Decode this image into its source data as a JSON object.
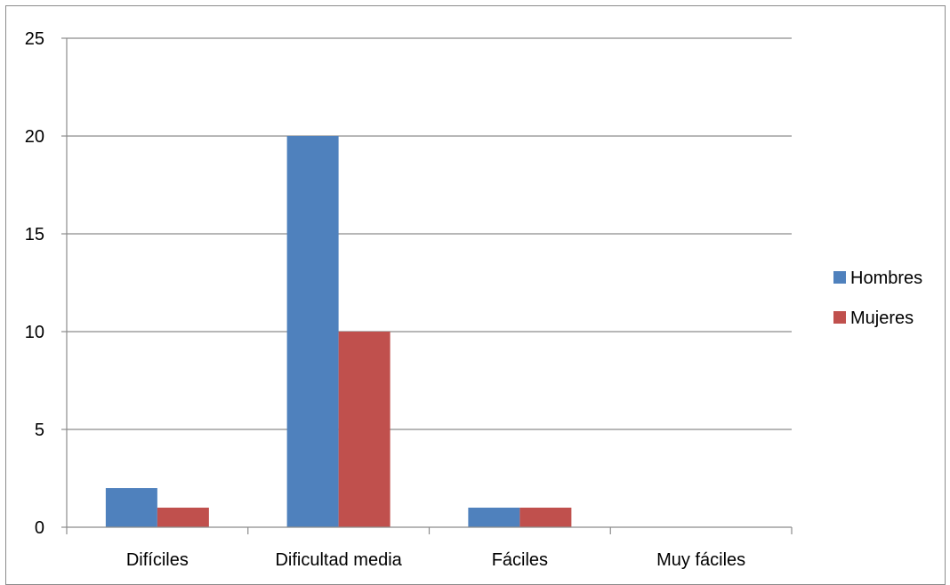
{
  "chart_data": {
    "type": "bar",
    "title": "",
    "xlabel": "",
    "ylabel": "",
    "categories": [
      "Difíciles",
      "Dificultad media",
      "Fáciles",
      "Muy fáciles"
    ],
    "series": [
      {
        "name": "Hombres",
        "values": [
          2,
          20,
          1,
          0
        ],
        "color": "#4f81bd"
      },
      {
        "name": "Mujeres",
        "values": [
          1,
          10,
          1,
          0
        ],
        "color": "#c0504d"
      }
    ],
    "ylim": [
      0,
      25
    ],
    "yticks": [
      0,
      5,
      10,
      15,
      20,
      25
    ],
    "grid": true,
    "legend_position": "right"
  },
  "colors": {
    "gridline": "#8c8c8c",
    "axis": "#8c8c8c",
    "frame": "#8c8c8c"
  }
}
